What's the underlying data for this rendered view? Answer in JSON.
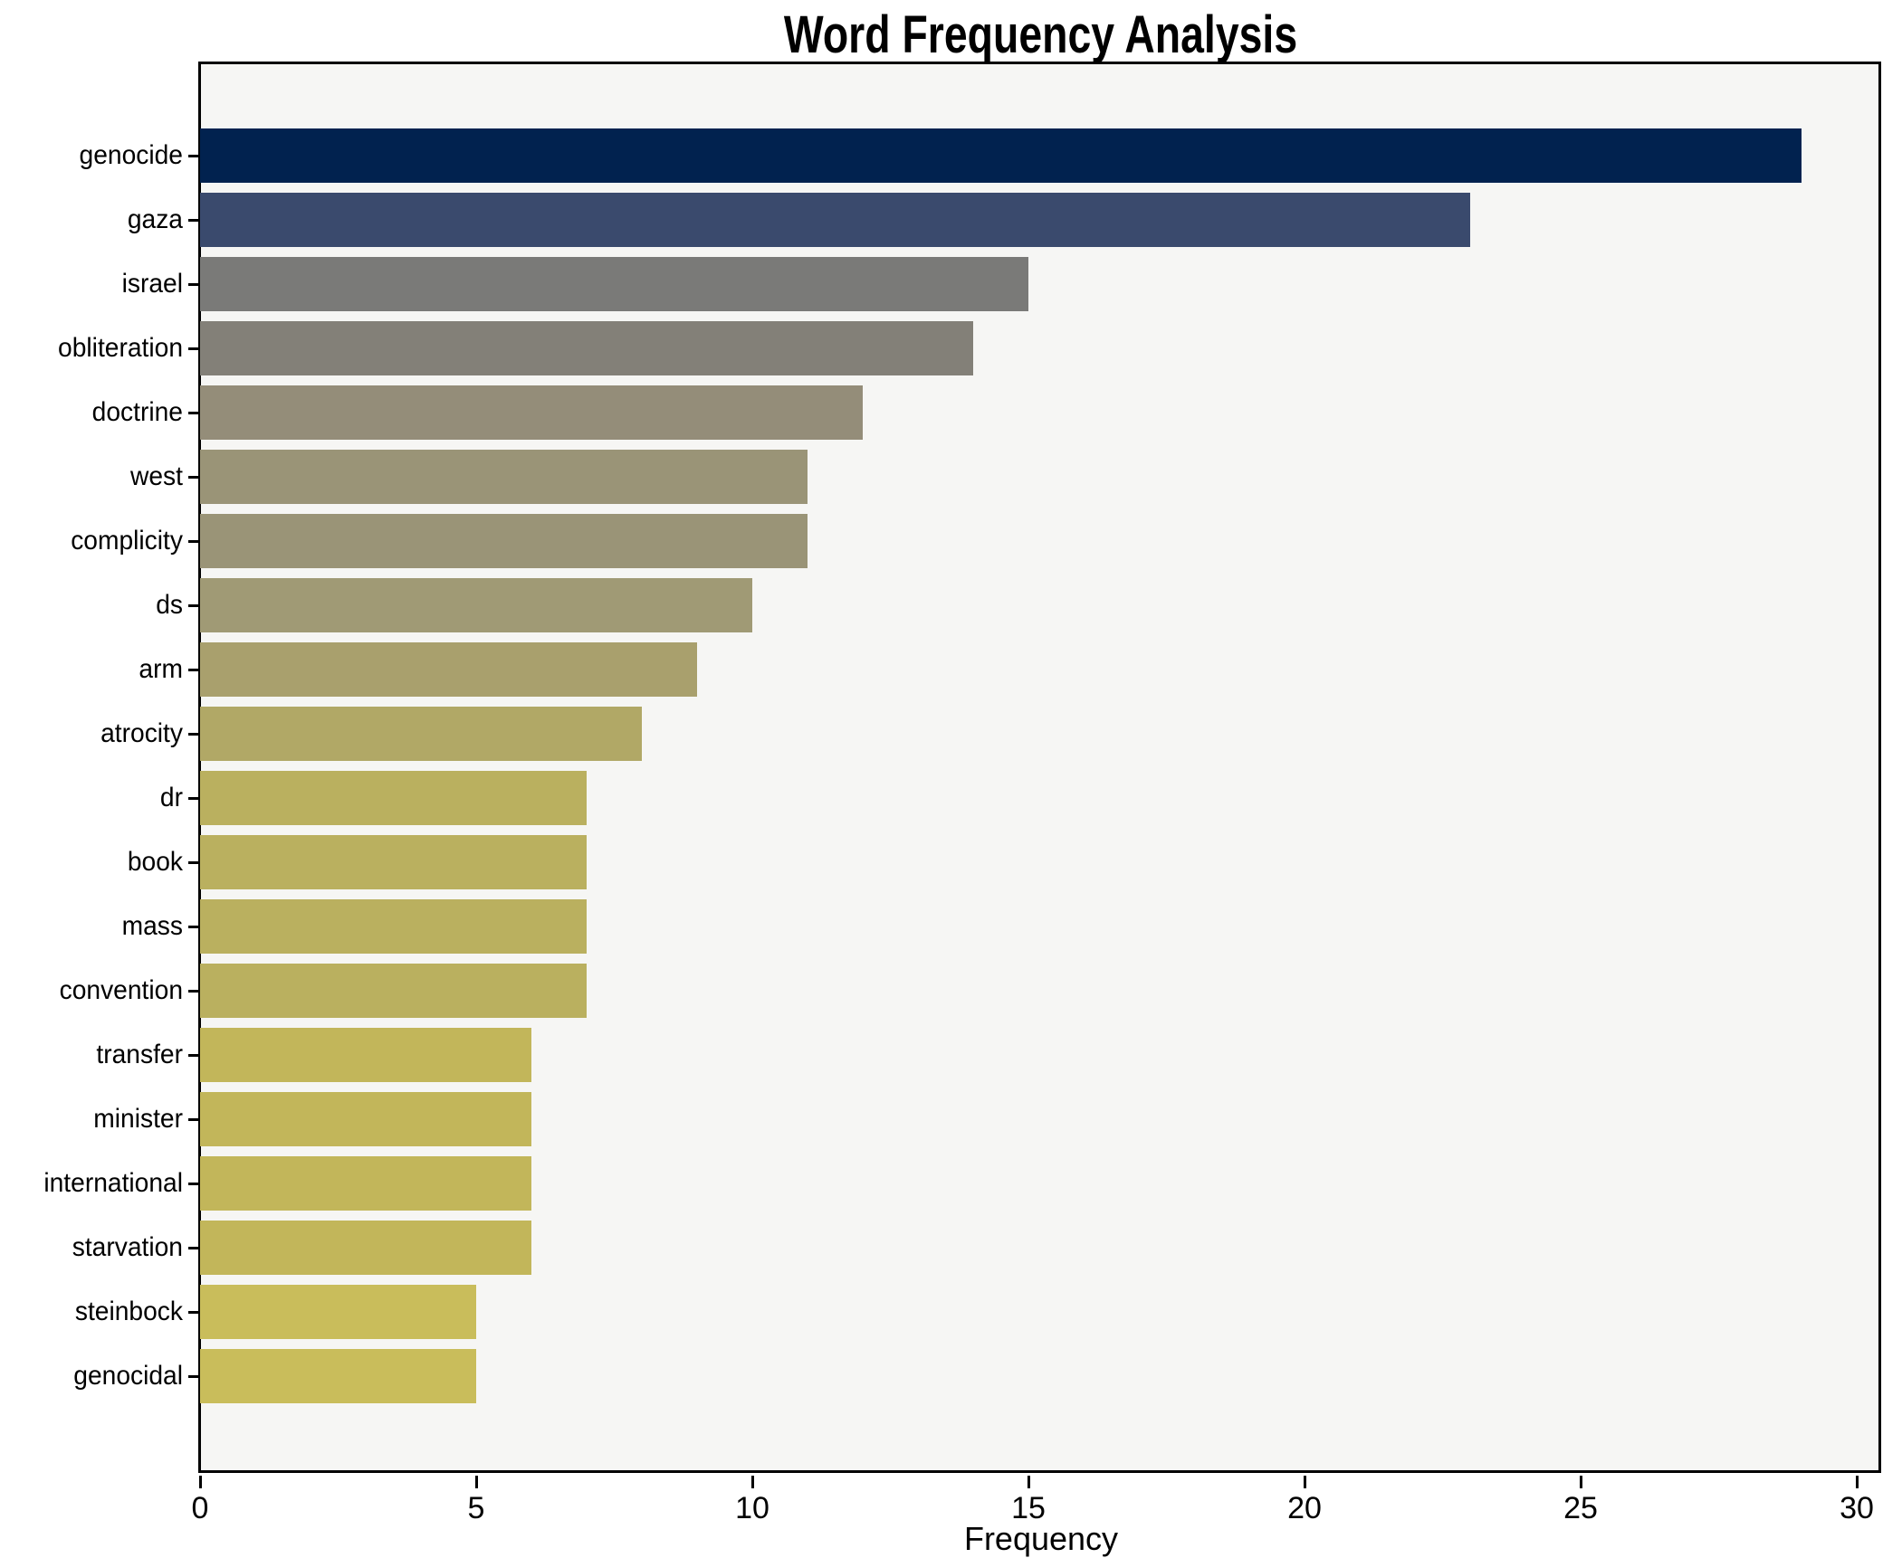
{
  "chart_data": {
    "type": "bar",
    "orientation": "horizontal",
    "title": "Word Frequency Analysis",
    "xlabel": "Frequency",
    "ylabel": "",
    "categories": [
      "genocide",
      "gaza",
      "israel",
      "obliteration",
      "doctrine",
      "west",
      "complicity",
      "ds",
      "arm",
      "atrocity",
      "dr",
      "book",
      "mass",
      "convention",
      "transfer",
      "minister",
      "international",
      "starvation",
      "steinbock",
      "genocidal"
    ],
    "values": [
      29,
      23,
      15,
      14,
      12,
      11,
      11,
      10,
      9,
      8,
      7,
      7,
      7,
      7,
      6,
      6,
      6,
      6,
      5,
      5
    ],
    "bar_colors": [
      "#01224f",
      "#3a4a6d",
      "#7a7a78",
      "#838078",
      "#948d79",
      "#9a9477",
      "#9a9477",
      "#a09a75",
      "#a9a06d",
      "#b1a866",
      "#bab05f",
      "#bab05f",
      "#bab05f",
      "#bab05f",
      "#c2b65a",
      "#c2b65a",
      "#c2b65a",
      "#c2b65a",
      "#c9bd5b",
      "#c9bd5b"
    ],
    "xticks": [
      0,
      5,
      10,
      15,
      20,
      25,
      30
    ],
    "xlim": [
      0,
      30.44
    ],
    "grid": false,
    "legend_position": "none",
    "plot_background": "#f6f6f4",
    "figure_background": "#ffffff",
    "spine_color": "#000000"
  }
}
